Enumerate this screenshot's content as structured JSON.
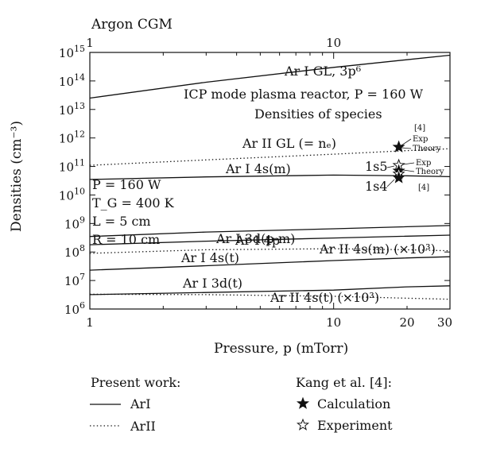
{
  "chart_data": {
    "type": "line",
    "top_axis_title": "Argon CGM",
    "xlabel": "Pressure, p (mTorr)",
    "ylabel": "Densities (cm⁻³)",
    "xscale": "log",
    "yscale": "log",
    "xlim": [
      1,
      30
    ],
    "ylim": [
      1000000.0,
      1000000000000000.0
    ],
    "x_ticks": [
      {
        "value": 1,
        "label": "1"
      },
      {
        "value": 10,
        "label": "10"
      },
      {
        "value": 20,
        "label": "20"
      },
      {
        "value": 30,
        "label": "30"
      }
    ],
    "top_ticks": [
      {
        "value": 1,
        "label": "1"
      },
      {
        "value": 10,
        "label": "10"
      }
    ],
    "y_ticks": [
      {
        "value": 1000000.0,
        "base": "10",
        "exp": "6"
      },
      {
        "value": 10000000.0,
        "base": "10",
        "exp": "7"
      },
      {
        "value": 100000000.0,
        "base": "10",
        "exp": "8"
      },
      {
        "value": 1000000000.0,
        "base": "10",
        "exp": "9"
      },
      {
        "value": 10000000000.0,
        "base": "10",
        "exp": "10"
      },
      {
        "value": 100000000000.0,
        "base": "10",
        "exp": "11"
      },
      {
        "value": 1000000000000.0,
        "base": "10",
        "exp": "12"
      },
      {
        "value": 10000000000000.0,
        "base": "10",
        "exp": "13"
      },
      {
        "value": 100000000000000.0,
        "base": "10",
        "exp": "14"
      },
      {
        "value": 1000000000000000.0,
        "base": "10",
        "exp": "15"
      }
    ],
    "series": [
      {
        "name": "Ar I GL, 3p⁶",
        "style": "solid",
        "points": [
          [
            1,
            25000000000000.0
          ],
          [
            3,
            90000000000000.0
          ],
          [
            10,
            300000000000000.0
          ],
          [
            30,
            800000000000000.0
          ]
        ]
      },
      {
        "name": "Ar II GL (= nₑ)",
        "style": "dotted",
        "points": [
          [
            1,
            110000000000.0
          ],
          [
            3,
            170000000000.0
          ],
          [
            10,
            270000000000.0
          ],
          [
            20,
            360000000000.0
          ],
          [
            30,
            420000000000.0
          ]
        ]
      },
      {
        "name": "Ar I 4s(m)",
        "style": "solid",
        "points": [
          [
            1,
            35000000000.0
          ],
          [
            3,
            43000000000.0
          ],
          [
            10,
            50000000000.0
          ],
          [
            20,
            47000000000.0
          ],
          [
            30,
            44000000000.0
          ]
        ]
      },
      {
        "name": "Ar I 4p",
        "style": "solid",
        "points": [
          [
            1,
            350000000.0
          ],
          [
            3,
            500000000.0
          ],
          [
            10,
            650000000.0
          ],
          [
            30,
            850000000.0
          ]
        ]
      },
      {
        "name": "Ar I 3d(p-m)",
        "style": "solid",
        "points": [
          [
            1,
            180000000.0
          ],
          [
            3,
            240000000.0
          ],
          [
            10,
            310000000.0
          ],
          [
            30,
            390000000.0
          ]
        ]
      },
      {
        "name": "Ar II 4s(m) (×10³)",
        "style": "dotted",
        "points": [
          [
            1,
            90000000.0
          ],
          [
            3,
            120000000.0
          ],
          [
            10,
            130000000.0
          ],
          [
            20,
            120000000.0
          ],
          [
            30,
            110000000.0
          ]
        ]
      },
      {
        "name": "Ar I 4s(t)",
        "style": "solid",
        "points": [
          [
            1,
            23000000.0
          ],
          [
            3,
            33000000.0
          ],
          [
            10,
            50000000.0
          ],
          [
            20,
            62000000.0
          ],
          [
            30,
            68000000.0
          ]
        ]
      },
      {
        "name": "Ar I 3d(t)",
        "style": "solid",
        "points": [
          [
            1,
            3200000.0
          ],
          [
            3,
            3800000.0
          ],
          [
            10,
            4600000.0
          ],
          [
            20,
            6000000.0
          ],
          [
            30,
            6500000.0
          ]
        ]
      },
      {
        "name": "Ar II 4s(t) (×10³)",
        "style": "dotted",
        "points": [
          [
            1,
            3300000.0
          ],
          [
            3,
            3200000.0
          ],
          [
            10,
            2800000.0
          ],
          [
            20,
            2400000.0
          ],
          [
            30,
            2200000.0
          ]
        ]
      }
    ],
    "markers": [
      {
        "kind": "calculation",
        "x": 18.5,
        "y": 480000000000.0
      },
      {
        "kind": "experiment",
        "x": 18.5,
        "y": 110000000000.0
      },
      {
        "kind": "calculation",
        "x": 18.5,
        "y": 70000000000.0
      },
      {
        "kind": "experiment",
        "x": 18.5,
        "y": 55000000000.0
      },
      {
        "kind": "calculation",
        "x": 18.5,
        "y": 40000000000.0
      }
    ],
    "annotations": {
      "title_line1": "ICP mode plasma reactor, P = 160 W",
      "title_line2": "Densities of species",
      "params": [
        "P = 160 W",
        "T_G = 400 K",
        "L = 5 cm",
        "R = 10 cm"
      ],
      "ref_upper": "[4]",
      "ref_lower": "[4]",
      "exp_upper": "Exp",
      "theory_upper": "Theory",
      "exp_lower": "Exp",
      "theory_lower": "Theory",
      "s5_label": "1s5",
      "s4_label": "1s4"
    },
    "legend": {
      "left_title": "Present work:",
      "left_items": [
        {
          "label": "ArI",
          "style": "solid"
        },
        {
          "label": "ArII",
          "style": "dotted"
        }
      ],
      "right_title": "Kang et al. [4]:",
      "right_items": [
        {
          "label": "Calculation",
          "marker": "filled-star"
        },
        {
          "label": "Experiment",
          "marker": "open-star"
        }
      ]
    }
  }
}
